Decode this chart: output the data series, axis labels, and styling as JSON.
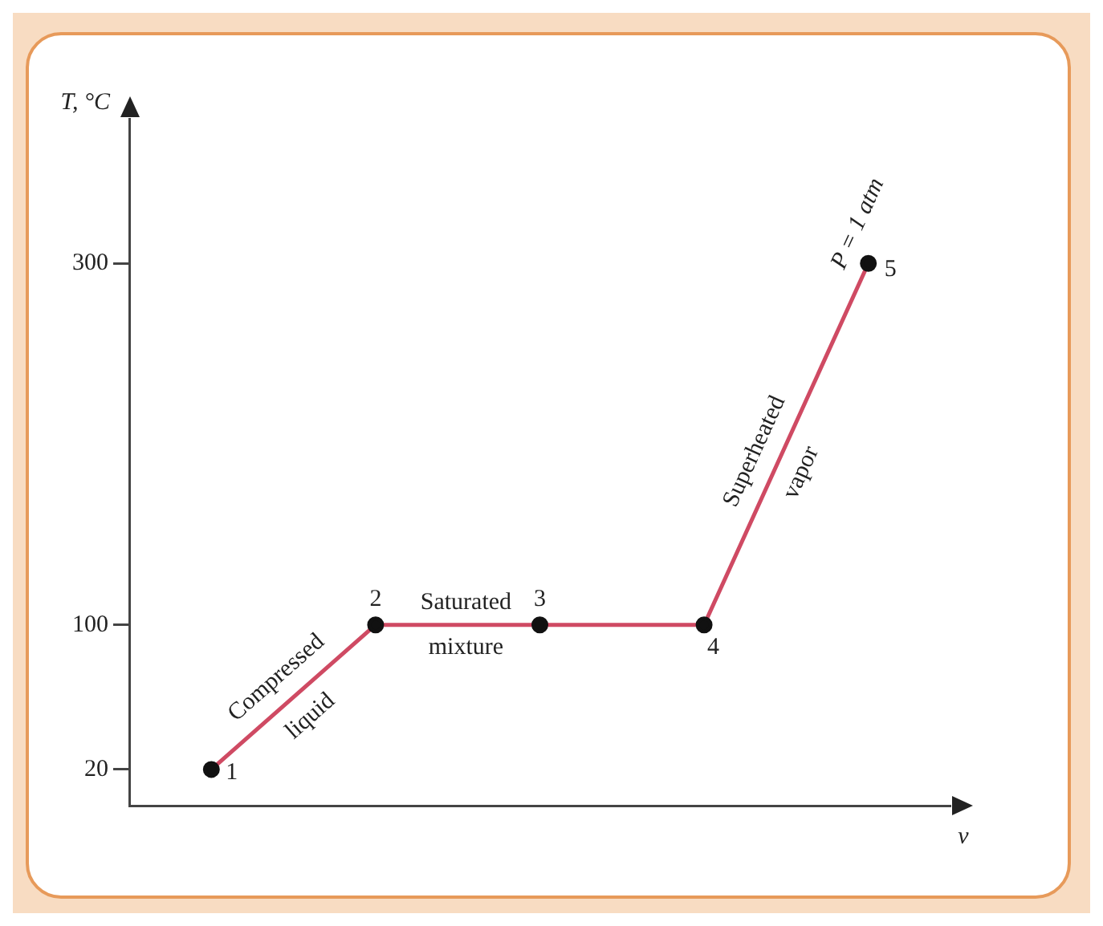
{
  "chart_data": {
    "type": "line",
    "xlabel": "v",
    "ylabel": "T, °C",
    "categories": [
      null,
      null,
      null,
      null,
      null
    ],
    "series": [
      {
        "color": "#cf4a63",
        "values": [
          20,
          100,
          100,
          100,
          300
        ]
      }
    ],
    "ylim": [
      0,
      380
    ],
    "yticks": [
      20,
      100,
      300
    ],
    "tick_labels": "y",
    "grid": false,
    "legend": false,
    "marker": "circle",
    "line_style": "solid",
    "annotations": [
      "Compressed liquid",
      "Saturated mixture",
      "Superheated vapor",
      "P = 1 atm",
      "1",
      "2",
      "3",
      "4",
      "5"
    ]
  }
}
